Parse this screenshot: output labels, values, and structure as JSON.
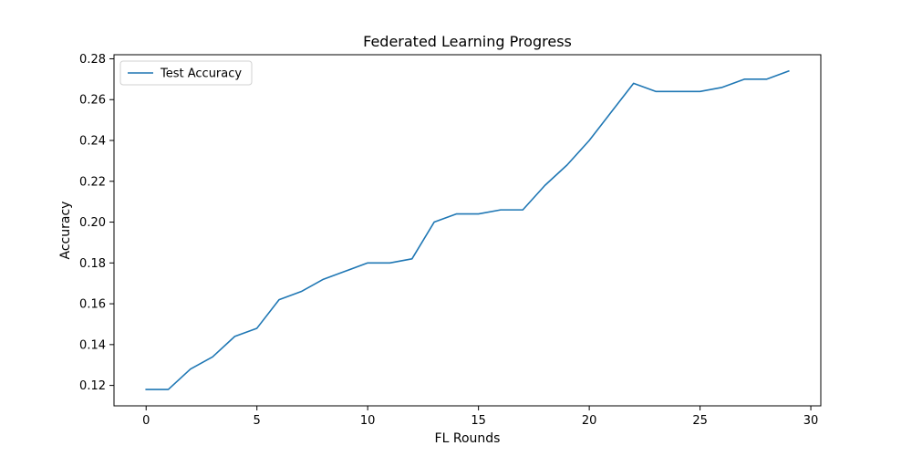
{
  "chart_data": {
    "type": "line",
    "title": "Federated Learning Progress",
    "xlabel": "FL Rounds",
    "ylabel": "Accuracy",
    "xlim": [
      -1.45,
      30.45
    ],
    "ylim": [
      0.11,
      0.282
    ],
    "xticks": [
      0,
      5,
      10,
      15,
      20,
      25,
      30
    ],
    "xtick_labels": [
      "0",
      "5",
      "10",
      "15",
      "20",
      "25",
      "30"
    ],
    "yticks": [
      0.12,
      0.14,
      0.16,
      0.18,
      0.2,
      0.22,
      0.24,
      0.26,
      0.28
    ],
    "ytick_labels": [
      "0.12",
      "0.14",
      "0.16",
      "0.18",
      "0.20",
      "0.22",
      "0.24",
      "0.26",
      "0.28"
    ],
    "grid": false,
    "legend": "top-left",
    "series": [
      {
        "name": "Test Accuracy",
        "color": "#1f77b4",
        "x": [
          0,
          1,
          2,
          3,
          4,
          5,
          6,
          7,
          8,
          9,
          10,
          11,
          12,
          13,
          14,
          15,
          16,
          17,
          18,
          19,
          20,
          21,
          22,
          23,
          24,
          25,
          26,
          27,
          28,
          29
        ],
        "y": [
          0.118,
          0.118,
          0.128,
          0.134,
          0.144,
          0.148,
          0.162,
          0.166,
          0.172,
          0.176,
          0.18,
          0.18,
          0.182,
          0.2,
          0.204,
          0.204,
          0.206,
          0.206,
          0.218,
          0.228,
          0.24,
          0.254,
          0.268,
          0.264,
          0.264,
          0.264,
          0.266,
          0.27,
          0.27,
          0.274
        ]
      }
    ]
  }
}
